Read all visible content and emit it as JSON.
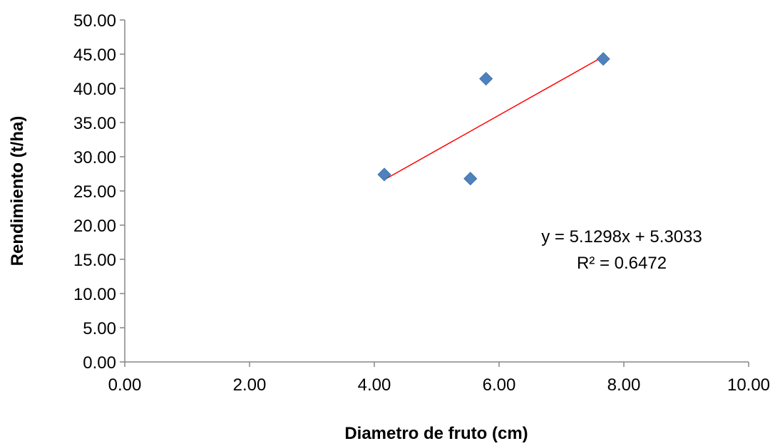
{
  "chart_data": {
    "type": "scatter",
    "title": "",
    "xlabel": "Diametro de fruto (cm)",
    "ylabel": "Rendimiento (t/ha)",
    "xlim": [
      0,
      10
    ],
    "ylim": [
      0,
      50
    ],
    "x_ticks": [
      "0.00",
      "2.00",
      "4.00",
      "6.00",
      "8.00",
      "10.00"
    ],
    "y_ticks": [
      "0.00",
      "5.00",
      "10.00",
      "15.00",
      "20.00",
      "25.00",
      "30.00",
      "35.00",
      "40.00",
      "45.00",
      "50.00"
    ],
    "grid": false,
    "legend": "none",
    "series": [
      {
        "marker": "diamond",
        "color": "#4f81bd",
        "points": [
          {
            "x": 4.16,
            "y": 27.4
          },
          {
            "x": 5.54,
            "y": 26.8
          },
          {
            "x": 5.79,
            "y": 41.4
          },
          {
            "x": 7.67,
            "y": 44.3
          }
        ]
      }
    ],
    "trendline": {
      "type": "linear",
      "color": "#ff0000",
      "slope": 5.1298,
      "intercept": 5.3033,
      "x_start": 4.16,
      "x_end": 7.67
    },
    "annotations": {
      "equation": "y = 5.1298x + 5.3033",
      "r_squared": "R² = 0.6472"
    }
  }
}
